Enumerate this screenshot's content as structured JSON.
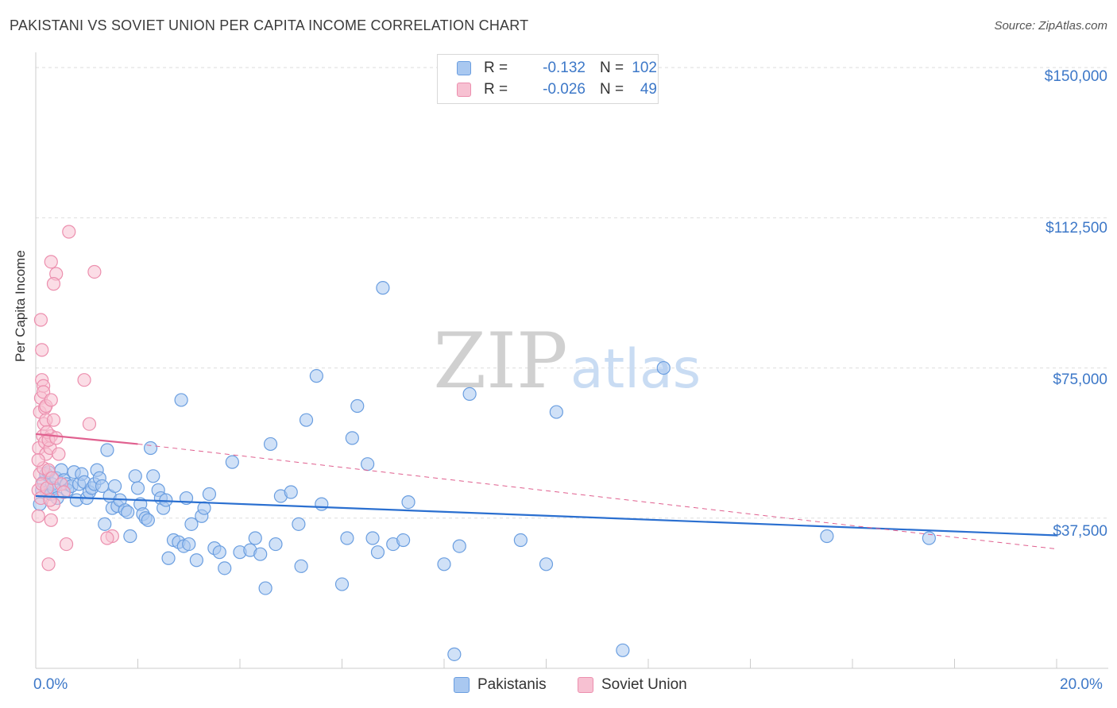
{
  "title": "PAKISTANI VS SOVIET UNION PER CAPITA INCOME CORRELATION CHART",
  "source": "Source: ZipAtlas.com",
  "watermark": {
    "zip": "ZIP",
    "atlas": "atlas"
  },
  "colors": {
    "pakistani_fill": "#a9c8f0",
    "pakistani_stroke": "#6a9ee0",
    "pakistani_line": "#2a6fd0",
    "soviet_fill": "#f7c1d2",
    "soviet_stroke": "#ec8fae",
    "soviet_line": "#e0608f",
    "axis_text": "#3d78c8",
    "grid": "#dddddd"
  },
  "legend_top": {
    "rows": [
      {
        "r_label": "R =",
        "r_value": "-0.132",
        "n_label": "N =",
        "n_value": "102"
      },
      {
        "r_label": "R =",
        "r_value": "-0.026",
        "n_label": "N =",
        "n_value": "49"
      }
    ]
  },
  "legend_bottom": {
    "items": [
      "Pakistanis",
      "Soviet Union"
    ]
  },
  "chart_data": {
    "type": "scatter",
    "title": "PAKISTANI VS SOVIET UNION PER CAPITA INCOME CORRELATION CHART",
    "xlabel": "",
    "ylabel": "Per Capita Income",
    "xlim": [
      0,
      20
    ],
    "ylim": [
      0,
      153000
    ],
    "x_tick_labels": [
      "0.0%",
      "20.0%"
    ],
    "y_ticks": [
      {
        "value": 37500,
        "label": "$37,500"
      },
      {
        "value": 75000,
        "label": "$75,000"
      },
      {
        "value": 112500,
        "label": "$112,500"
      },
      {
        "value": 150000,
        "label": "$150,000"
      }
    ],
    "grid": true,
    "legend": "bottom",
    "series": [
      {
        "name": "Pakistanis",
        "r": -0.132,
        "n": 102,
        "trend": {
          "x": [
            0,
            20
          ],
          "y": [
            43000,
            33200
          ],
          "style": "solid"
        },
        "points": [
          [
            0.08,
            41000
          ],
          [
            0.12,
            44500
          ],
          [
            0.15,
            46500
          ],
          [
            0.2,
            48500
          ],
          [
            0.22,
            44000
          ],
          [
            0.25,
            49000
          ],
          [
            0.3,
            43500
          ],
          [
            0.32,
            46000
          ],
          [
            0.35,
            45000
          ],
          [
            0.4,
            47500
          ],
          [
            0.42,
            42500
          ],
          [
            0.5,
            49500
          ],
          [
            0.55,
            47000
          ],
          [
            0.6,
            46000
          ],
          [
            0.62,
            44500
          ],
          [
            0.7,
            45500
          ],
          [
            0.75,
            49000
          ],
          [
            0.8,
            42000
          ],
          [
            0.85,
            46000
          ],
          [
            0.9,
            48500
          ],
          [
            0.95,
            46500
          ],
          [
            1.0,
            42500
          ],
          [
            1.05,
            44000
          ],
          [
            1.1,
            45000
          ],
          [
            1.15,
            46000
          ],
          [
            1.2,
            49500
          ],
          [
            1.25,
            47500
          ],
          [
            1.3,
            45500
          ],
          [
            1.4,
            54500
          ],
          [
            1.45,
            43000
          ],
          [
            1.5,
            40000
          ],
          [
            1.55,
            45500
          ],
          [
            1.6,
            40500
          ],
          [
            1.65,
            42000
          ],
          [
            1.75,
            39500
          ],
          [
            1.8,
            39000
          ],
          [
            1.85,
            33000
          ],
          [
            1.95,
            48000
          ],
          [
            2.0,
            45000
          ],
          [
            2.05,
            41000
          ],
          [
            2.1,
            38500
          ],
          [
            2.15,
            37500
          ],
          [
            2.2,
            37000
          ],
          [
            2.25,
            55000
          ],
          [
            2.3,
            48000
          ],
          [
            2.4,
            44500
          ],
          [
            2.45,
            42500
          ],
          [
            2.5,
            40000
          ],
          [
            2.55,
            42000
          ],
          [
            2.6,
            27500
          ],
          [
            2.7,
            32000
          ],
          [
            2.8,
            31500
          ],
          [
            2.9,
            30500
          ],
          [
            2.95,
            42500
          ],
          [
            3.0,
            31000
          ],
          [
            3.05,
            36000
          ],
          [
            3.15,
            27000
          ],
          [
            3.25,
            38000
          ],
          [
            3.3,
            40000
          ],
          [
            3.4,
            43500
          ],
          [
            3.5,
            30000
          ],
          [
            3.6,
            29000
          ],
          [
            3.7,
            25000
          ],
          [
            3.85,
            51500
          ],
          [
            4.0,
            29000
          ],
          [
            4.2,
            29500
          ],
          [
            4.3,
            32500
          ],
          [
            4.4,
            28500
          ],
          [
            4.5,
            20000
          ],
          [
            4.6,
            56000
          ],
          [
            4.7,
            31000
          ],
          [
            4.8,
            43000
          ],
          [
            5.0,
            44000
          ],
          [
            5.15,
            36000
          ],
          [
            5.2,
            25500
          ],
          [
            5.3,
            62000
          ],
          [
            5.5,
            73000
          ],
          [
            5.6,
            41000
          ],
          [
            6.0,
            21000
          ],
          [
            6.1,
            32500
          ],
          [
            6.2,
            57500
          ],
          [
            6.3,
            65500
          ],
          [
            6.5,
            51000
          ],
          [
            6.6,
            32500
          ],
          [
            6.7,
            29000
          ],
          [
            6.8,
            95000
          ],
          [
            7.0,
            31000
          ],
          [
            7.2,
            32000
          ],
          [
            7.3,
            41500
          ],
          [
            8.0,
            26000
          ],
          [
            8.2,
            3500
          ],
          [
            8.3,
            30500
          ],
          [
            8.5,
            68500
          ],
          [
            9.5,
            32000
          ],
          [
            10.0,
            26000
          ],
          [
            10.2,
            64000
          ],
          [
            11.5,
            4500
          ],
          [
            12.3,
            75000
          ],
          [
            15.5,
            33000
          ],
          [
            17.5,
            32500
          ],
          [
            2.85,
            67000
          ],
          [
            1.35,
            36000
          ]
        ]
      },
      {
        "name": "Soviet Union",
        "r": -0.026,
        "n": 49,
        "trend": {
          "x": [
            0,
            2
          ],
          "y": [
            58500,
            56000
          ],
          "style": "solid",
          "extended": {
            "x": [
              2,
              20
            ],
            "y": [
              56000,
              29800
            ],
            "style": "dashed"
          }
        },
        "points": [
          [
            0.05,
            44500
          ],
          [
            0.08,
            48500
          ],
          [
            0.1,
            42500
          ],
          [
            0.12,
            46000
          ],
          [
            0.15,
            50000
          ],
          [
            0.05,
            38000
          ],
          [
            0.06,
            55000
          ],
          [
            0.08,
            64000
          ],
          [
            0.1,
            67500
          ],
          [
            0.12,
            72000
          ],
          [
            0.14,
            58000
          ],
          [
            0.16,
            61000
          ],
          [
            0.18,
            56500
          ],
          [
            0.2,
            53500
          ],
          [
            0.22,
            45000
          ],
          [
            0.25,
            49500
          ],
          [
            0.28,
            55000
          ],
          [
            0.3,
            58000
          ],
          [
            0.32,
            47500
          ],
          [
            0.35,
            41000
          ],
          [
            0.05,
            52000
          ],
          [
            0.1,
            87000
          ],
          [
            0.12,
            79500
          ],
          [
            0.15,
            70500
          ],
          [
            0.18,
            65000
          ],
          [
            0.2,
            62000
          ],
          [
            0.22,
            59000
          ],
          [
            0.25,
            57000
          ],
          [
            0.28,
            42000
          ],
          [
            0.3,
            37000
          ],
          [
            0.35,
            62000
          ],
          [
            0.4,
            57500
          ],
          [
            0.45,
            53500
          ],
          [
            0.5,
            46000
          ],
          [
            0.55,
            44000
          ],
          [
            0.6,
            31000
          ],
          [
            0.65,
            109000
          ],
          [
            0.3,
            101500
          ],
          [
            0.4,
            98500
          ],
          [
            0.35,
            96000
          ],
          [
            1.15,
            99000
          ],
          [
            0.95,
            72000
          ],
          [
            1.05,
            61000
          ],
          [
            1.5,
            33000
          ],
          [
            1.4,
            32500
          ],
          [
            0.25,
            26000
          ],
          [
            0.15,
            69000
          ],
          [
            0.2,
            65500
          ],
          [
            0.3,
            67000
          ]
        ]
      }
    ]
  }
}
